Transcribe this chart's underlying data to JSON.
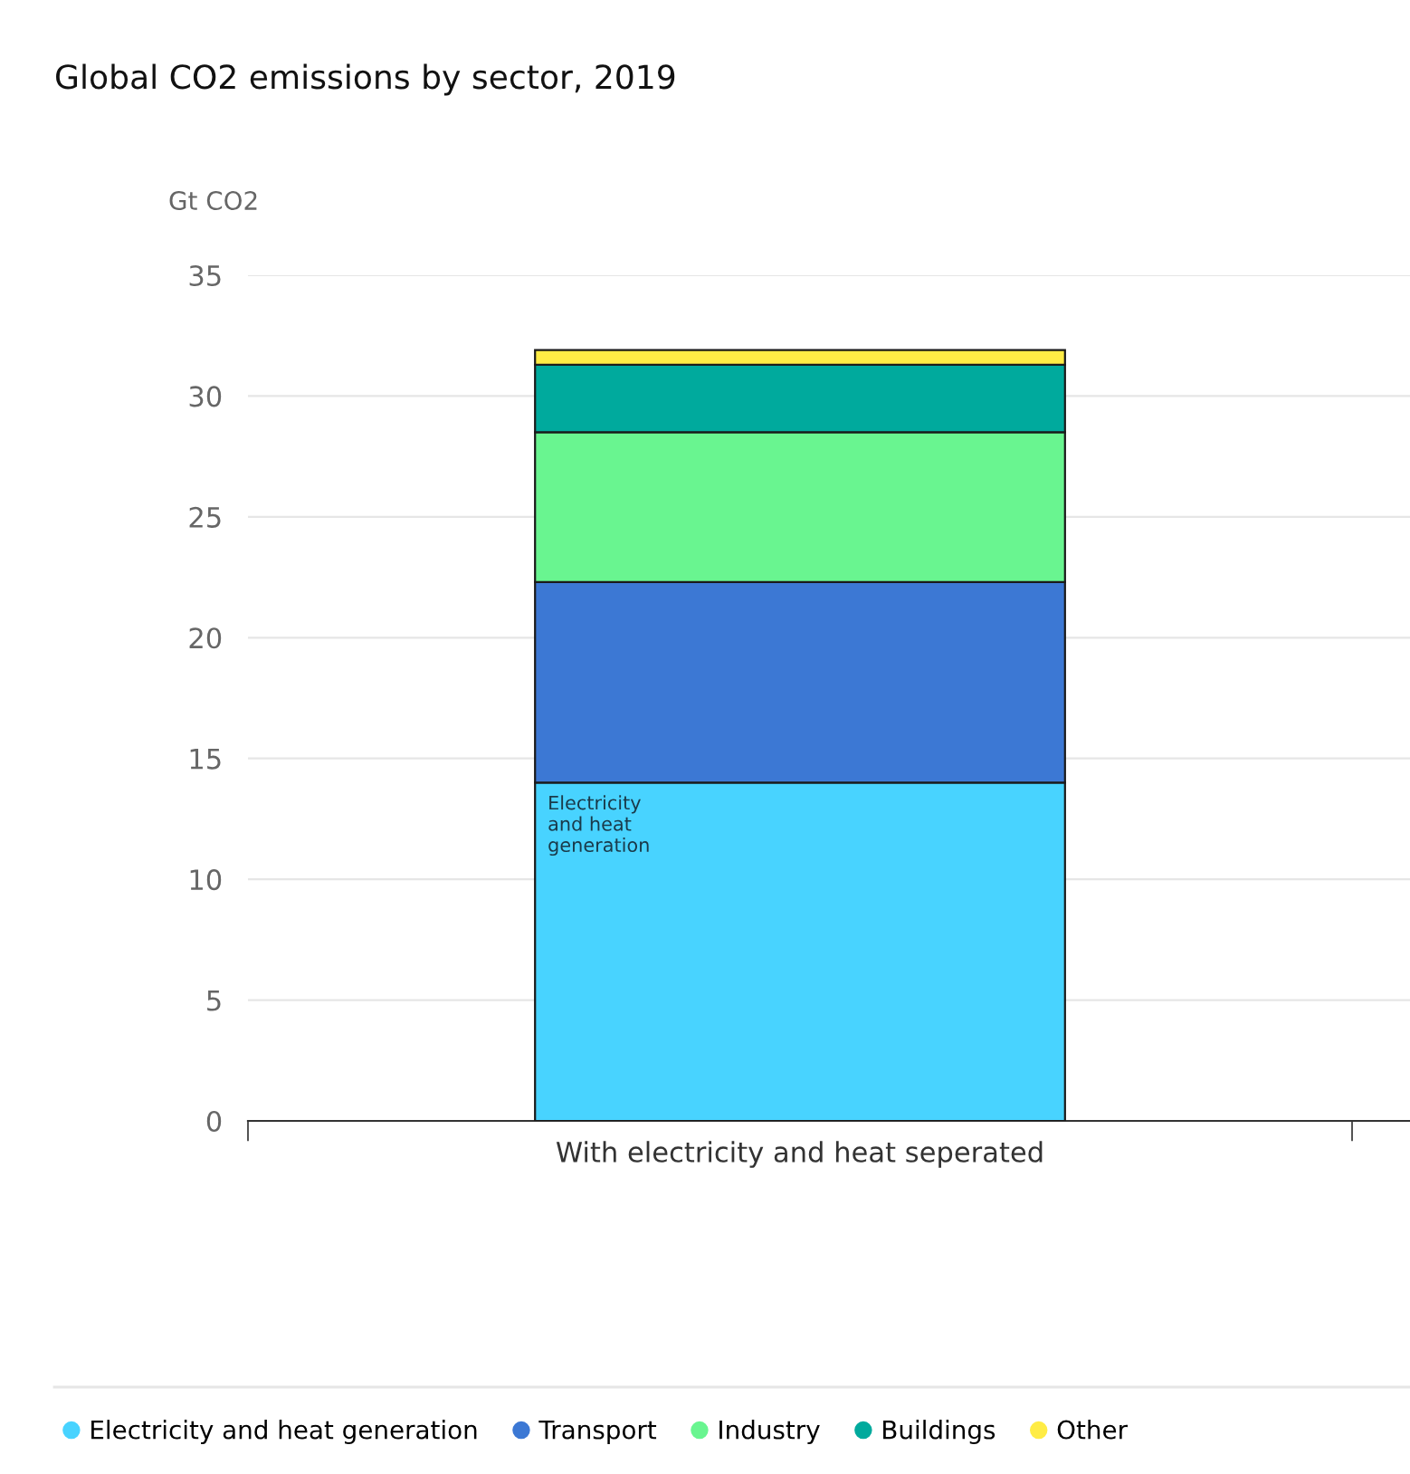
{
  "chart_data": {
    "type": "bar",
    "title": "Global CO2 emissions by sector, 2019",
    "ylabel": "Gt CO2",
    "categories": [
      "With electricity and heat seperated"
    ],
    "stacked": true,
    "series": [
      {
        "name": "Electricity and heat generation",
        "color": "#48d3ff",
        "values": [
          14.0
        ]
      },
      {
        "name": "Transport",
        "color": "#3c78d4",
        "values": [
          8.3
        ]
      },
      {
        "name": "Industry",
        "color": "#69f590",
        "values": [
          6.2
        ]
      },
      {
        "name": "Buildings",
        "color": "#00aa9d",
        "values": [
          2.8
        ]
      },
      {
        "name": "Other",
        "color": "#ffec45",
        "values": [
          0.6
        ]
      }
    ],
    "annotations": [
      "Electricity\nand heat\ngeneration"
    ],
    "ylim": [
      0,
      35
    ],
    "yticks": [
      0,
      5,
      10,
      15,
      20,
      25,
      30,
      35
    ],
    "grid": "y",
    "legend": "bottom"
  }
}
